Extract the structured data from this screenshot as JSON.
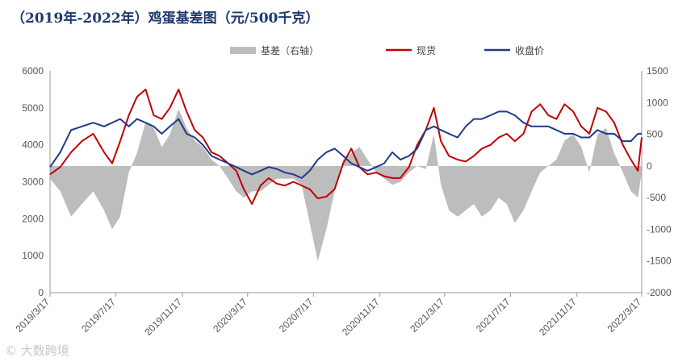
{
  "chart_data": {
    "type": "line",
    "title": "（2019年-2022年）鸡蛋基差图（元/500千克）",
    "x_ticks": [
      "2019/3/17",
      "2019/7/17",
      "2019/11/17",
      "2020/3/17",
      "2020/7/17",
      "2020/11/17",
      "2021/3/17",
      "2021/7/17",
      "2021/11/17",
      "2022/3/17"
    ],
    "x_range": [
      "2019/3/17",
      "2022/3/17"
    ],
    "y_left_ticks": [
      0,
      1000,
      2000,
      3000,
      4000,
      5000,
      6000
    ],
    "y_left_range": [
      0,
      6000
    ],
    "y_right_ticks": [
      -2000,
      -1500,
      -1000,
      -500,
      0,
      500,
      1000,
      1500
    ],
    "y_right_range": [
      -2000,
      1500
    ],
    "legend_position": "top-right",
    "colors": {
      "basis": "#bdbdbd",
      "spot": "#c00000",
      "futures": "#1f3a8a"
    },
    "series": [
      {
        "name": "基差（右轴）",
        "axis": "right",
        "style": "area",
        "x": [
          "2019/3/17",
          "2019/4/5",
          "2019/4/25",
          "2019/5/15",
          "2019/6/5",
          "2019/6/25",
          "2019/7/10",
          "2019/7/25",
          "2019/8/10",
          "2019/8/25",
          "2019/9/10",
          "2019/9/25",
          "2019/10/10",
          "2019/10/25",
          "2019/11/10",
          "2019/11/25",
          "2019/12/10",
          "2019/12/25",
          "2020/1/10",
          "2020/1/25",
          "2020/2/10",
          "2020/2/25",
          "2020/3/10",
          "2020/3/25",
          "2020/4/10",
          "2020/4/25",
          "2020/5/10",
          "2020/5/25",
          "2020/6/10",
          "2020/6/25",
          "2020/7/10",
          "2020/7/25",
          "2020/8/10",
          "2020/8/25",
          "2020/9/10",
          "2020/9/25",
          "2020/10/10",
          "2020/10/25",
          "2020/11/10",
          "2020/11/25",
          "2020/12/10",
          "2020/12/25",
          "2021/1/10",
          "2021/1/25",
          "2021/2/10",
          "2021/2/25",
          "2021/3/10",
          "2021/3/25",
          "2021/4/10",
          "2021/4/25",
          "2021/5/10",
          "2021/5/25",
          "2021/6/10",
          "2021/6/25",
          "2021/7/10",
          "2021/7/25",
          "2021/8/10",
          "2021/8/25",
          "2021/9/10",
          "2021/9/25",
          "2021/10/10",
          "2021/10/25",
          "2021/11/10",
          "2021/11/25",
          "2021/12/10",
          "2021/12/25",
          "2022/1/10",
          "2022/1/25",
          "2022/2/10",
          "2022/2/25",
          "2022/3/10",
          "2022/3/17"
        ],
        "values": [
          -200,
          -400,
          -800,
          -600,
          -400,
          -700,
          -1000,
          -800,
          -100,
          200,
          700,
          600,
          300,
          500,
          900,
          600,
          400,
          300,
          100,
          0,
          -200,
          -400,
          -500,
          -400,
          -400,
          -300,
          -200,
          -200,
          -200,
          -300,
          -900,
          -1500,
          -1000,
          -400,
          100,
          200,
          300,
          100,
          -100,
          -200,
          -300,
          -250,
          -100,
          0,
          -50,
          500,
          -300,
          -700,
          -800,
          -700,
          -600,
          -800,
          -700,
          -500,
          -600,
          -900,
          -700,
          -400,
          -100,
          0,
          100,
          400,
          500,
          300,
          -100,
          500,
          600,
          200,
          -100,
          -400,
          -500,
          -100
        ]
      },
      {
        "name": "现货",
        "axis": "left",
        "style": "line",
        "x": [
          "2019/3/17",
          "2019/4/5",
          "2019/4/25",
          "2019/5/15",
          "2019/6/5",
          "2019/6/25",
          "2019/7/10",
          "2019/7/25",
          "2019/8/10",
          "2019/8/25",
          "2019/9/10",
          "2019/9/25",
          "2019/10/10",
          "2019/10/25",
          "2019/11/10",
          "2019/11/25",
          "2019/12/10",
          "2019/12/25",
          "2020/1/10",
          "2020/1/25",
          "2020/2/10",
          "2020/2/25",
          "2020/3/10",
          "2020/3/25",
          "2020/4/10",
          "2020/4/25",
          "2020/5/10",
          "2020/5/25",
          "2020/6/10",
          "2020/6/25",
          "2020/7/10",
          "2020/7/25",
          "2020/8/10",
          "2020/8/25",
          "2020/9/10",
          "2020/9/25",
          "2020/10/10",
          "2020/10/25",
          "2020/11/10",
          "2020/11/25",
          "2020/12/10",
          "2020/12/25",
          "2021/1/10",
          "2021/1/25",
          "2021/2/10",
          "2021/2/25",
          "2021/3/10",
          "2021/3/25",
          "2021/4/10",
          "2021/4/25",
          "2021/5/10",
          "2021/5/25",
          "2021/6/10",
          "2021/6/25",
          "2021/7/10",
          "2021/7/25",
          "2021/8/10",
          "2021/8/25",
          "2021/9/10",
          "2021/9/25",
          "2021/10/10",
          "2021/10/25",
          "2021/11/10",
          "2021/11/25",
          "2021/12/10",
          "2021/12/25",
          "2022/1/10",
          "2022/1/25",
          "2022/2/10",
          "2022/2/25",
          "2022/3/10",
          "2022/3/17"
        ],
        "values": [
          3200,
          3400,
          3800,
          4100,
          4300,
          3800,
          3500,
          4100,
          4800,
          5300,
          5500,
          4800,
          4700,
          5000,
          5500,
          4900,
          4400,
          4200,
          3800,
          3700,
          3500,
          3300,
          2800,
          2400,
          2900,
          3100,
          2950,
          2900,
          3000,
          2900,
          2800,
          2550,
          2600,
          2800,
          3500,
          3900,
          3400,
          3200,
          3250,
          3150,
          3100,
          3100,
          3400,
          4000,
          4400,
          5000,
          4100,
          3700,
          3600,
          3550,
          3700,
          3900,
          4000,
          4200,
          4300,
          4100,
          4300,
          4900,
          5100,
          4800,
          4700,
          5100,
          4900,
          4500,
          4300,
          5000,
          4900,
          4600,
          4000,
          3600,
          3300,
          4200
        ]
      },
      {
        "name": "收盘价",
        "axis": "left",
        "style": "line",
        "x": [
          "2019/3/17",
          "2019/4/5",
          "2019/4/25",
          "2019/5/15",
          "2019/6/5",
          "2019/6/25",
          "2019/7/10",
          "2019/7/25",
          "2019/8/10",
          "2019/8/25",
          "2019/9/10",
          "2019/9/25",
          "2019/10/10",
          "2019/10/25",
          "2019/11/10",
          "2019/11/25",
          "2019/12/10",
          "2019/12/25",
          "2020/1/10",
          "2020/1/25",
          "2020/2/10",
          "2020/2/25",
          "2020/3/10",
          "2020/3/25",
          "2020/4/10",
          "2020/4/25",
          "2020/5/10",
          "2020/5/25",
          "2020/6/10",
          "2020/6/25",
          "2020/7/10",
          "2020/7/25",
          "2020/8/10",
          "2020/8/25",
          "2020/9/10",
          "2020/9/25",
          "2020/10/10",
          "2020/10/25",
          "2020/11/10",
          "2020/11/25",
          "2020/12/10",
          "2020/12/25",
          "2021/1/10",
          "2021/1/25",
          "2021/2/10",
          "2021/2/25",
          "2021/3/10",
          "2021/3/25",
          "2021/4/10",
          "2021/4/25",
          "2021/5/10",
          "2021/5/25",
          "2021/6/10",
          "2021/6/25",
          "2021/7/10",
          "2021/7/25",
          "2021/8/10",
          "2021/8/25",
          "2021/9/10",
          "2021/9/25",
          "2021/10/10",
          "2021/10/25",
          "2021/11/10",
          "2021/11/25",
          "2021/12/10",
          "2021/12/25",
          "2022/1/10",
          "2022/1/25",
          "2022/2/10",
          "2022/2/25",
          "2022/3/10",
          "2022/3/17"
        ],
        "values": [
          3400,
          3800,
          4400,
          4500,
          4600,
          4500,
          4600,
          4700,
          4500,
          4700,
          4600,
          4500,
          4300,
          4500,
          4700,
          4300,
          4200,
          4000,
          3700,
          3600,
          3500,
          3400,
          3300,
          3200,
          3300,
          3400,
          3350,
          3250,
          3200,
          3100,
          3300,
          3600,
          3800,
          3900,
          3700,
          3500,
          3400,
          3300,
          3400,
          3500,
          3800,
          3600,
          3700,
          3900,
          4400,
          4500,
          4400,
          4300,
          4200,
          4500,
          4700,
          4700,
          4800,
          4900,
          4900,
          4800,
          4600,
          4500,
          4500,
          4500,
          4400,
          4300,
          4300,
          4200,
          4200,
          4400,
          4300,
          4300,
          4100,
          4100,
          4300,
          4300
        ]
      }
    ]
  },
  "watermark": "大数跨境"
}
